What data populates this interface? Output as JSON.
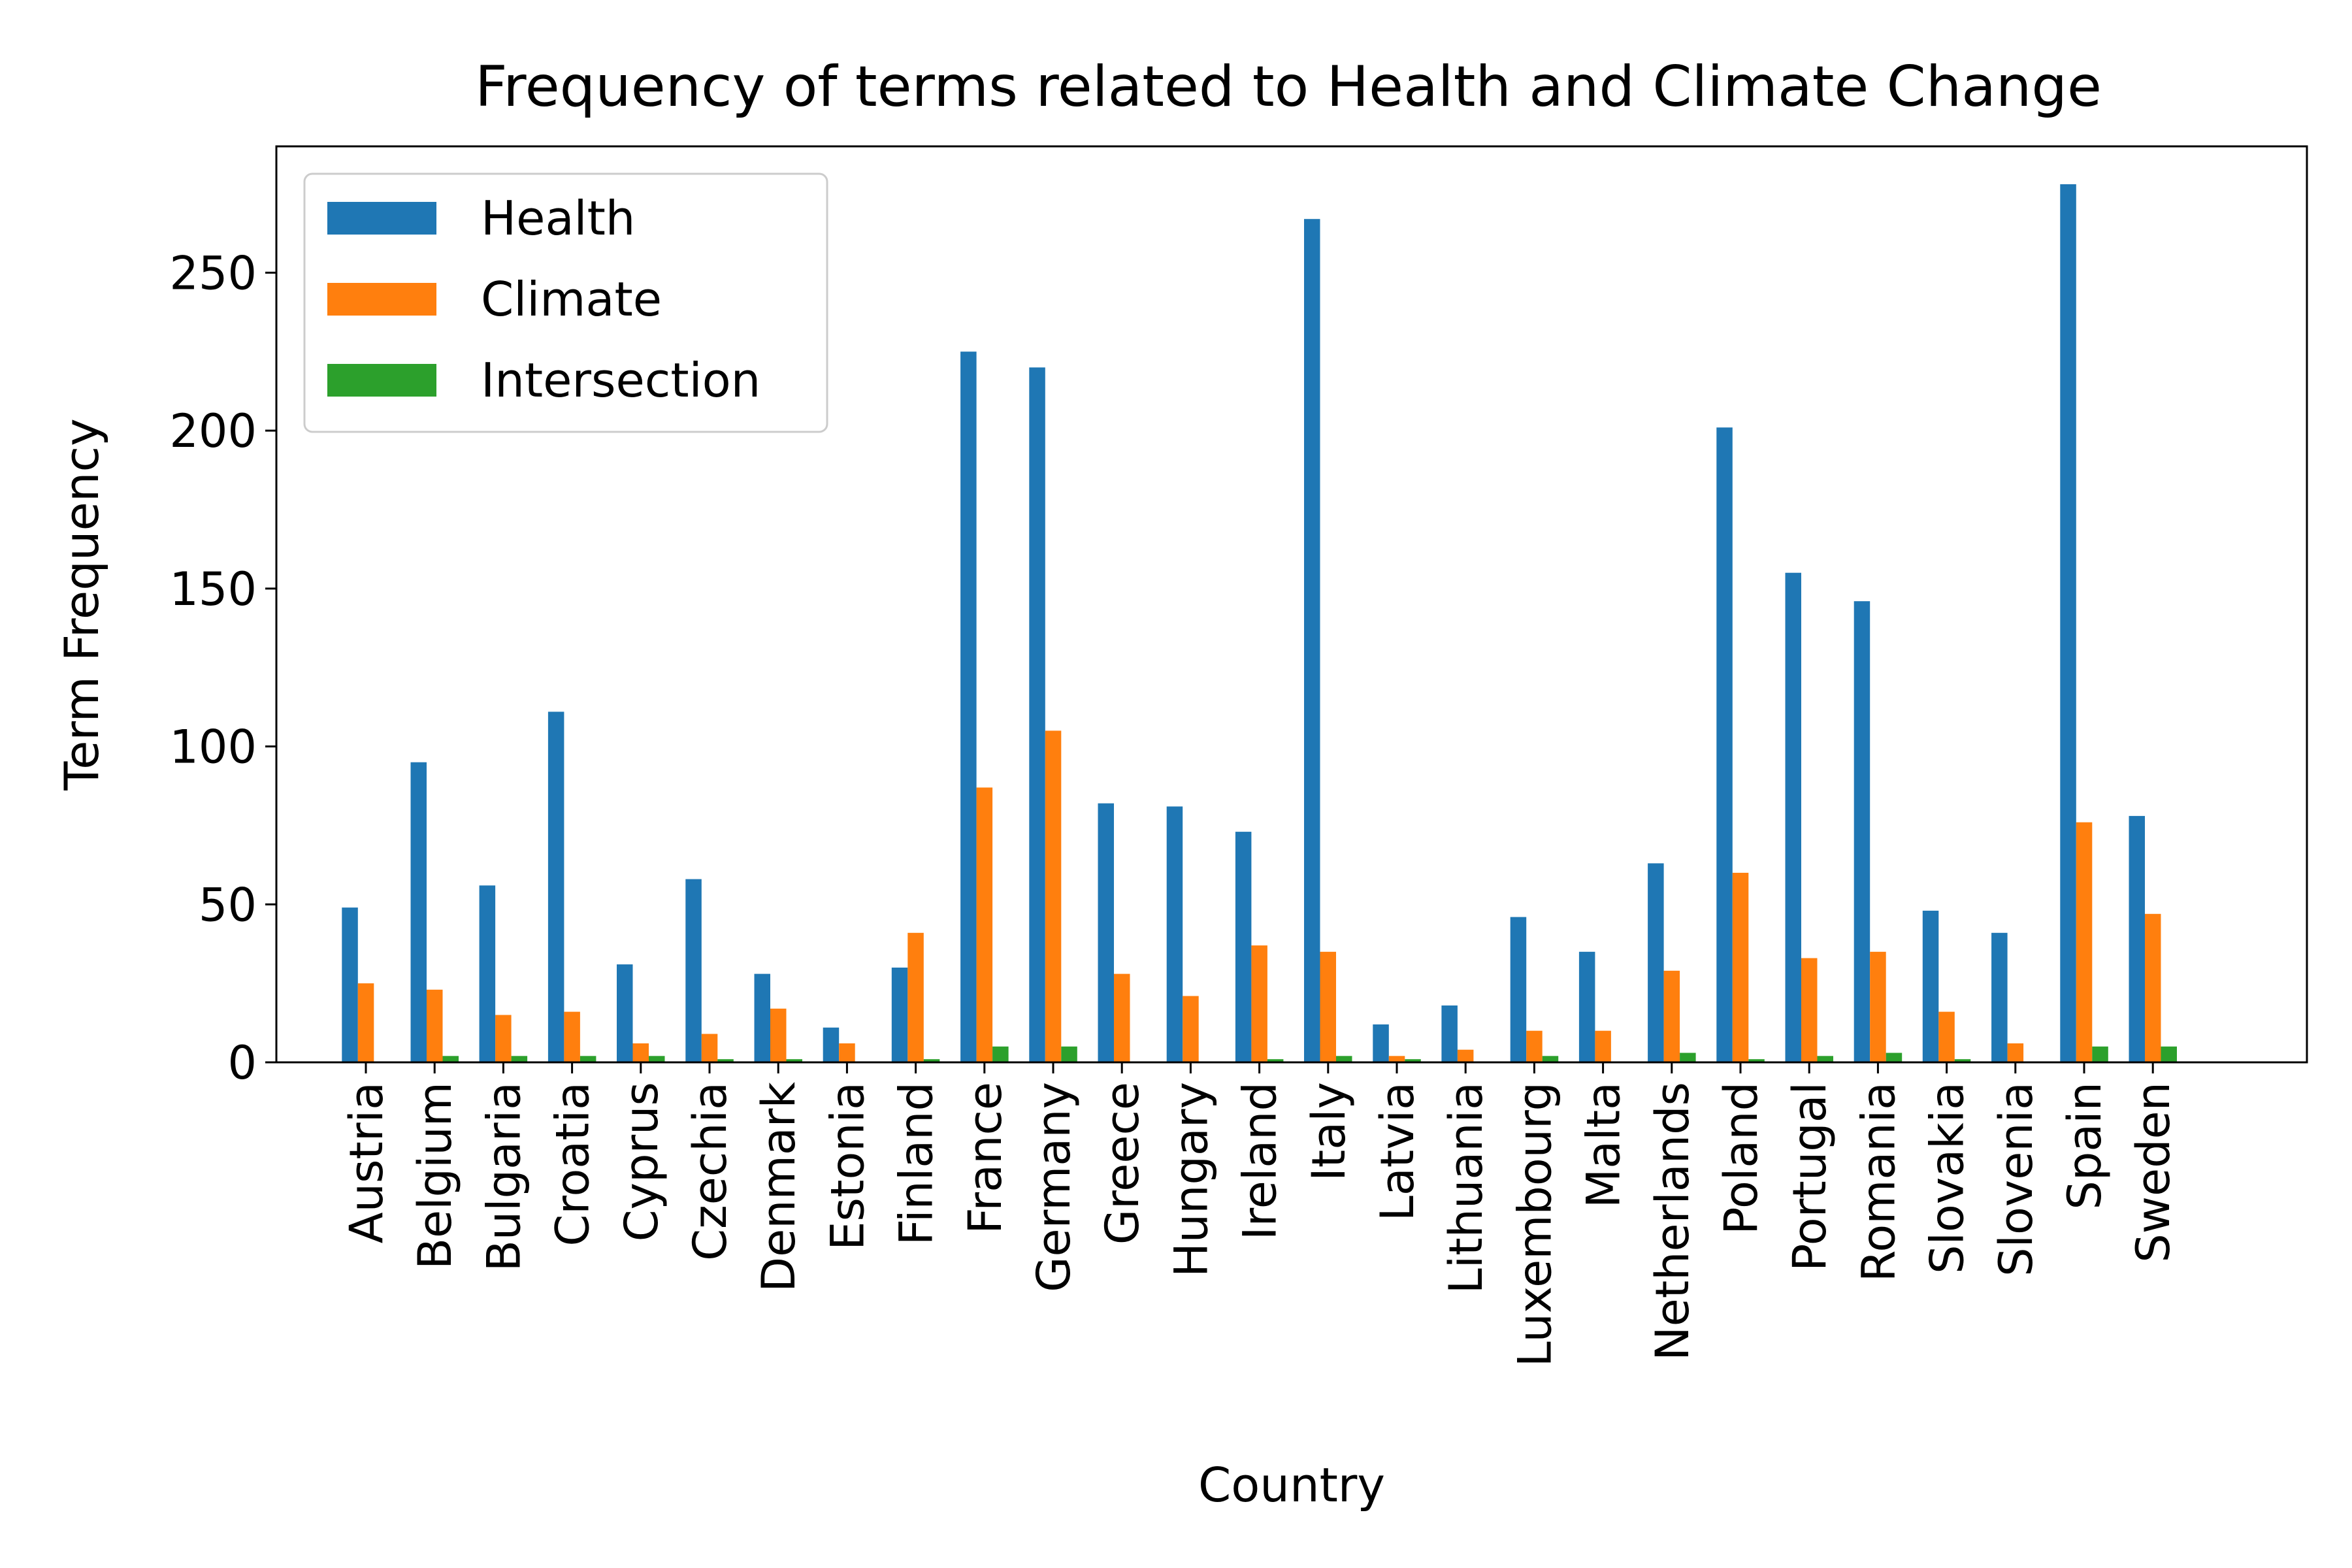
{
  "chart_data": {
    "type": "bar",
    "title": "Frequency of terms related to Health and Climate Change",
    "xlabel": "Country",
    "ylabel": "Term Frequency",
    "ylim": [
      0,
      290
    ],
    "yticks": [
      0,
      50,
      100,
      150,
      200,
      250
    ],
    "grid": false,
    "legend_position": "top-left",
    "categories": [
      "Austria",
      "Belgium",
      "Bulgaria",
      "Croatia",
      "Cyprus",
      "Czechia",
      "Denmark",
      "Estonia",
      "Finland",
      "France",
      "Germany",
      "Greece",
      "Hungary",
      "Ireland",
      "Italy",
      "Latvia",
      "Lithuania",
      "Luxembourg",
      "Malta",
      "Netherlands",
      "Poland",
      "Portugal",
      "Romania",
      "Slovakia",
      "Slovenia",
      "Spain",
      "Sweden"
    ],
    "series": [
      {
        "name": "Health",
        "color": "#1f77b4",
        "values": [
          49,
          95,
          56,
          111,
          31,
          58,
          28,
          11,
          30,
          225,
          220,
          82,
          81,
          73,
          267,
          12,
          18,
          46,
          35,
          63,
          201,
          155,
          146,
          48,
          41,
          278,
          78
        ]
      },
      {
        "name": "Climate",
        "color": "#ff7f0e",
        "values": [
          25,
          23,
          15,
          16,
          6,
          9,
          17,
          6,
          41,
          87,
          105,
          28,
          21,
          37,
          35,
          2,
          4,
          10,
          10,
          29,
          60,
          33,
          35,
          16,
          6,
          76,
          47
        ]
      },
      {
        "name": "Intersection",
        "color": "#2ca02c",
        "values": [
          0,
          2,
          2,
          2,
          2,
          1,
          1,
          0,
          1,
          5,
          5,
          0,
          0,
          1,
          2,
          1,
          0,
          2,
          0,
          3,
          1,
          2,
          3,
          1,
          0,
          5,
          5
        ]
      }
    ]
  }
}
